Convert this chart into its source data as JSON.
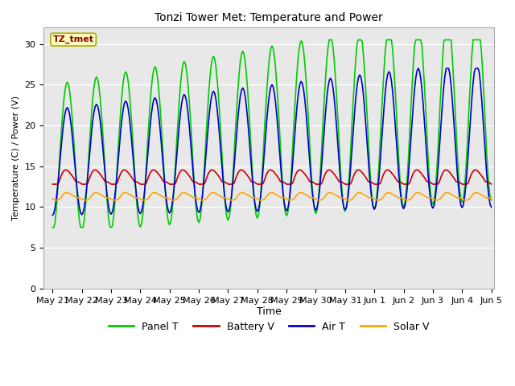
{
  "title": "Tonzi Tower Met: Temperature and Power",
  "xlabel": "Time",
  "ylabel": "Temperature (C) / Power (V)",
  "ylim": [
    0,
    32
  ],
  "yticks": [
    0,
    5,
    10,
    15,
    20,
    25,
    30
  ],
  "x_labels": [
    "May 21",
    "May 22",
    "May 23",
    "May 24",
    "May 25",
    "May 26",
    "May 27",
    "May 28",
    "May 29",
    "May 30",
    "May 31",
    "Jun 1",
    "Jun 2",
    "Jun 3",
    "Jun 4",
    "Jun 5"
  ],
  "annotation_text": "TZ_tmet",
  "annotation_color": "#8B0000",
  "annotation_bg": "#FFFFC0",
  "bg_color": "#E8E8E8",
  "grid_color": "#FFFFFF",
  "panel_color": "#00CC00",
  "battery_color": "#CC0000",
  "air_color": "#0000CC",
  "solar_color": "#FFA500",
  "legend_labels": [
    "Panel T",
    "Battery V",
    "Air T",
    "Solar V"
  ],
  "n_days": 15,
  "pts_per_day": 24
}
